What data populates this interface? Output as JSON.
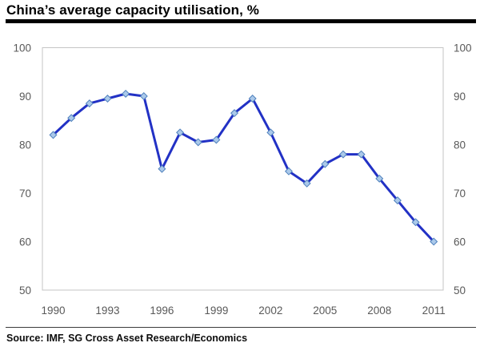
{
  "title": "China’s average capacity utilisation, %",
  "source": "Source: IMF, SG Cross Asset Research/Economics",
  "colors": {
    "line": "#2231c5",
    "marker_fill": "#abc9ea",
    "marker_stroke": "#4f81bd",
    "plot_border": "#c5c5c5",
    "axis_text": "#595959",
    "title_text": "#000000",
    "rule": "#000000"
  },
  "chart_data": {
    "type": "line",
    "title": "China’s average capacity utilisation, %",
    "xlabel": "",
    "ylabel": "",
    "x": [
      1990,
      1991,
      1992,
      1993,
      1994,
      1995,
      1996,
      1997,
      1998,
      1999,
      2000,
      2001,
      2002,
      2003,
      2004,
      2005,
      2006,
      2007,
      2008,
      2009,
      2010,
      2011
    ],
    "series": [
      {
        "name": "China average capacity utilisation (%)",
        "values": [
          82,
          85.5,
          88.5,
          89.5,
          90.5,
          90,
          75,
          82.5,
          80.5,
          81,
          86.5,
          89.5,
          82.5,
          74.5,
          72,
          76,
          78,
          78,
          73,
          68.5,
          64,
          60
        ]
      }
    ],
    "ylim": [
      50,
      100
    ],
    "yticks": [
      50,
      60,
      70,
      80,
      90,
      100
    ],
    "xticks": [
      1990,
      1993,
      1996,
      1999,
      2002,
      2005,
      2008,
      2011
    ],
    "grid": false,
    "legend": "none",
    "marker": "diamond",
    "y_axis_sides": [
      "left",
      "right"
    ],
    "source": "Source: IMF, SG Cross Asset Research/Economics"
  }
}
